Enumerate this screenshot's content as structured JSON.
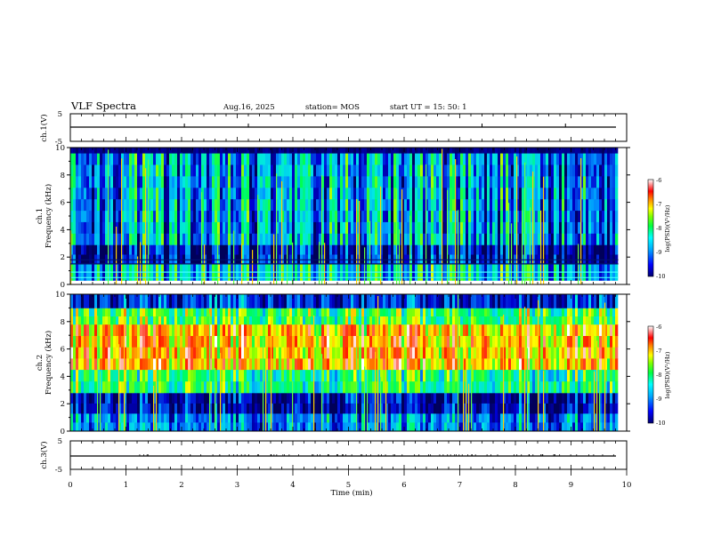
{
  "header": {
    "title": "VLF Spectra",
    "date": "Aug.16, 2025",
    "station": "station= MOS",
    "start": "start  UT  =   15: 50: 1"
  },
  "colors": {
    "background": "#00005a",
    "low": "#0000c8",
    "mid_low": "#00c8ff",
    "mid": "#00ff64",
    "mid_high": "#ffff00",
    "high": "#ff2000"
  },
  "chart_data": [
    {
      "type": "line",
      "name": "ch1-waveform",
      "ylabel": "ch.1(V)",
      "ylim": [
        -5,
        5
      ],
      "yticks": [
        "5",
        "-5"
      ],
      "x": [
        0,
        10
      ],
      "y": [
        0,
        0
      ]
    },
    {
      "type": "heatmap",
      "name": "ch1-spectrogram",
      "ylabel_top": "ch.1",
      "ylabel": "Frequency (kHz)",
      "ylim": [
        0,
        10
      ],
      "yticks": [
        "0",
        "2",
        "4",
        "6",
        "8",
        "10"
      ],
      "xlim": [
        0,
        10
      ],
      "data_end_min": 9.85,
      "colorbar": {
        "label": "log(PSD)(V²/Hz)",
        "range": [
          -10,
          -6
        ],
        "ticks": [
          "-6",
          "-7",
          "-8",
          "-9",
          "-10"
        ]
      },
      "bands": [
        {
          "fmin": 0.3,
          "fmax": 1.5,
          "level": -8.6
        },
        {
          "fmin": 1.5,
          "fmax": 2.9,
          "level": -9.7
        },
        {
          "fmin": 2.9,
          "fmax": 9.6,
          "level": -8.8
        },
        {
          "fmin": 9.6,
          "fmax": 10.0,
          "level": -10.0
        }
      ],
      "lines_khz": [
        0.5,
        0.9,
        1.5,
        1.8
      ]
    },
    {
      "type": "heatmap",
      "name": "ch2-spectrogram",
      "ylabel_top": "ch.2",
      "ylabel": "Frequency (kHz)",
      "ylim": [
        0,
        10
      ],
      "yticks": [
        "0",
        "2",
        "4",
        "6",
        "8",
        "10"
      ],
      "xlim": [
        0,
        10
      ],
      "data_end_min": 9.85,
      "colorbar": {
        "label": "log(PSD)(V²/Hz)",
        "range": [
          -10,
          -6
        ],
        "ticks": [
          "-6",
          "-7",
          "-8",
          "-9",
          "-10"
        ]
      },
      "bands": [
        {
          "fmin": 0.0,
          "fmax": 1.3,
          "level": -8.9
        },
        {
          "fmin": 1.3,
          "fmax": 2.8,
          "level": -9.6
        },
        {
          "fmin": 2.8,
          "fmax": 4.5,
          "level": -8.0
        },
        {
          "fmin": 4.5,
          "fmax": 7.8,
          "level": -6.9
        },
        {
          "fmin": 7.8,
          "fmax": 9.0,
          "level": -7.8
        },
        {
          "fmin": 9.0,
          "fmax": 10.0,
          "level": -9.3
        }
      ]
    },
    {
      "type": "line",
      "name": "ch3-waveform",
      "ylabel": "ch.3(V)",
      "ylim": [
        -5,
        5
      ],
      "yticks": [
        "5",
        "-5"
      ],
      "x": [
        0,
        10
      ],
      "y": [
        0,
        0
      ]
    }
  ],
  "xaxis": {
    "label": "Time  (min)",
    "ticks": [
      "0",
      "1",
      "2",
      "3",
      "4",
      "5",
      "6",
      "7",
      "8",
      "9",
      "10"
    ],
    "xlim": [
      0,
      10
    ]
  }
}
